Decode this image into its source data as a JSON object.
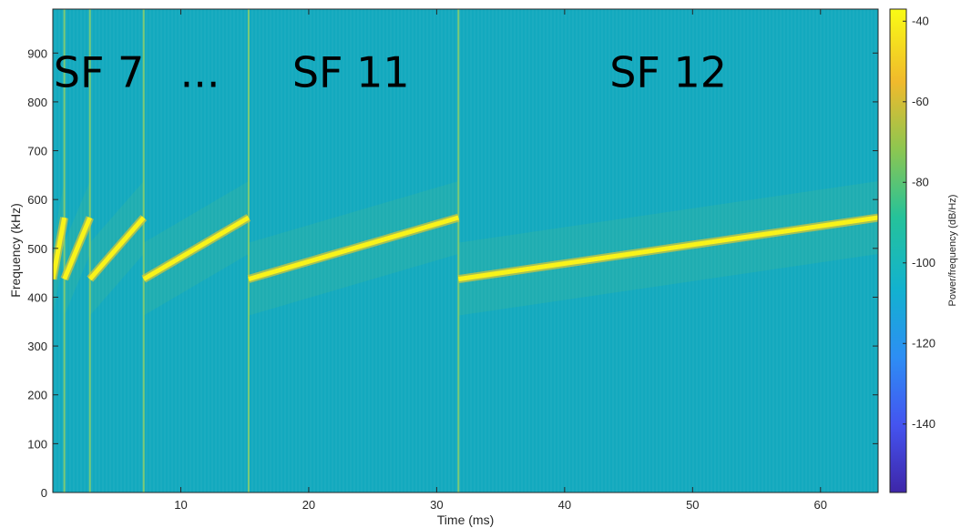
{
  "chart_data": {
    "type": "heatmap",
    "title": "",
    "xlabel": "Time (ms)",
    "ylabel": "Frequency (kHz)",
    "colorbar_label": "Power/frequency (dB/Hz)",
    "xlim": [
      0,
      64.5
    ],
    "ylim": [
      0,
      990
    ],
    "clim": [
      -157,
      -37
    ],
    "x_ticks": [
      10,
      20,
      30,
      40,
      50,
      60
    ],
    "y_ticks": [
      0,
      100,
      200,
      300,
      400,
      500,
      600,
      700,
      800,
      900
    ],
    "colorbar_ticks": [
      -40,
      -60,
      -80,
      -100,
      -120,
      -140
    ],
    "background_level_db": -103,
    "colormap": [
      "#3e26a8",
      "#4454f0",
      "#2d8ef4",
      "#12b2cf",
      "#25c29a",
      "#8dc650",
      "#f0ba2c",
      "#f9fb15"
    ],
    "annotations": [
      {
        "text": "SF 7",
        "x": 3.6,
        "y": 860
      },
      {
        "text": "...",
        "x": 11.5,
        "y": 860
      },
      {
        "text": "SF 11",
        "x": 23.3,
        "y": 860
      },
      {
        "text": "SF 12",
        "x": 48.1,
        "y": 860
      }
    ],
    "series": [
      {
        "name": "",
        "x_start": 0.0,
        "x_end": 0.9,
        "f_start": 437,
        "f_end": 563
      },
      {
        "name": "",
        "x_start": 0.9,
        "x_end": 2.9,
        "f_start": 437,
        "f_end": 563
      },
      {
        "name": "",
        "x_start": 2.9,
        "x_end": 7.1,
        "f_start": 437,
        "f_end": 563
      },
      {
        "name": "",
        "x_start": 7.1,
        "x_end": 15.3,
        "f_start": 437,
        "f_end": 563
      },
      {
        "name": "",
        "x_start": 15.3,
        "x_end": 31.7,
        "f_start": 437,
        "f_end": 563
      },
      {
        "name": "",
        "x_start": 31.7,
        "x_end": 64.5,
        "f_start": 437,
        "f_end": 563
      }
    ],
    "boundaries": [
      0.9,
      2.9,
      7.1,
      15.3,
      31.7
    ]
  }
}
